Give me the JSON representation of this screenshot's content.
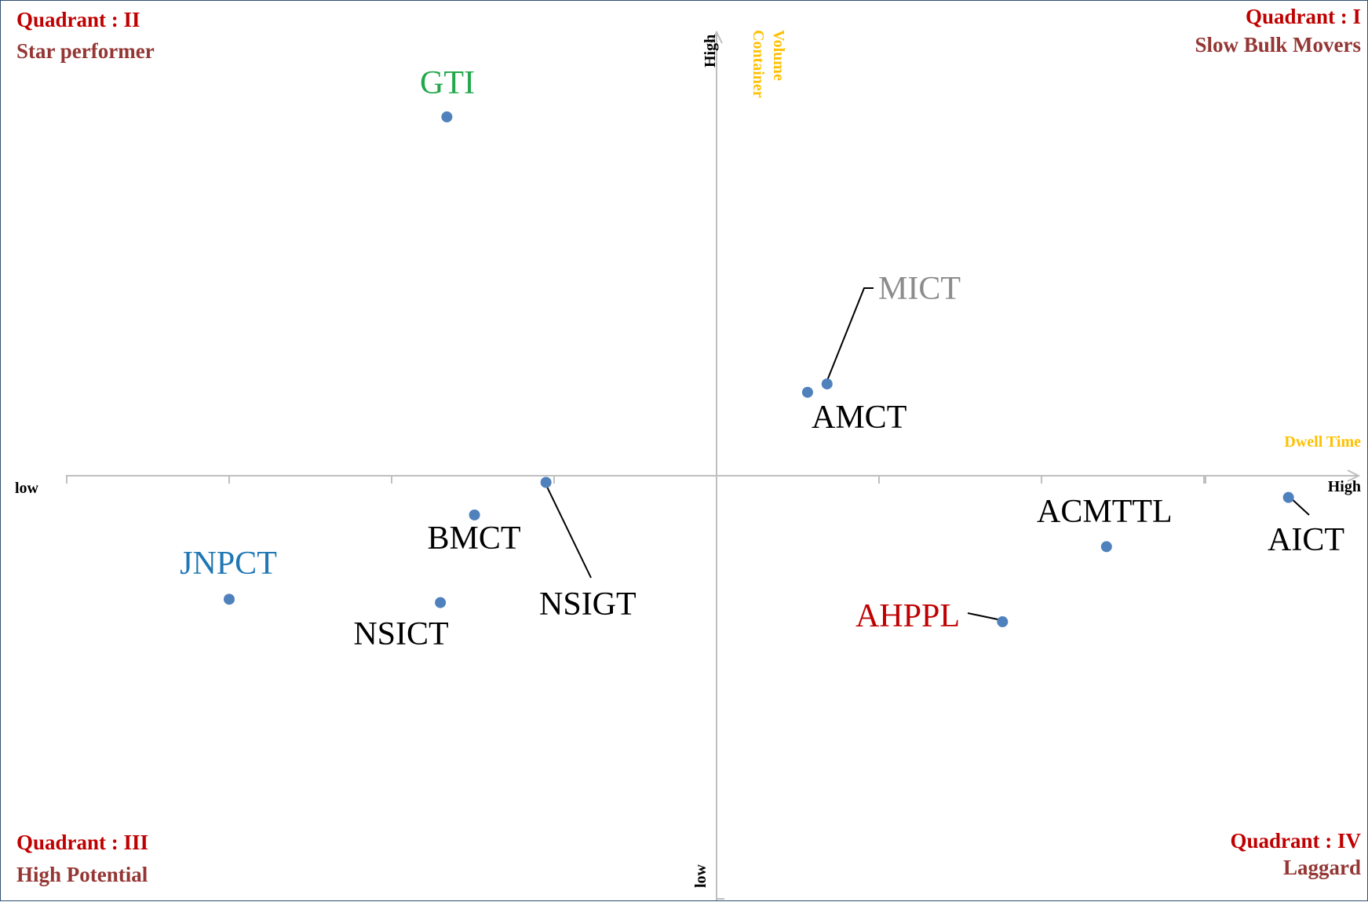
{
  "chart_data": {
    "type": "scatter",
    "xlabel": "Dwell Time",
    "ylabel_lines": [
      "Container",
      "Volume"
    ],
    "x_low_label": "low",
    "x_high_label": "High",
    "y_low_label": "low",
    "y_high_label": "High",
    "xlim": [
      -4,
      4
    ],
    "ylim": [
      -5.25,
      5.25
    ],
    "grid": false,
    "quadrants": [
      {
        "title": "Quadrant : II",
        "subtitle": "Star performer"
      },
      {
        "title": "Quadrant : I",
        "subtitle": "Slow Bulk Movers"
      },
      {
        "title": "Quadrant : III",
        "subtitle": "High Potential"
      },
      {
        "title": "Quadrant : IV",
        "subtitle": "Laggard"
      }
    ],
    "points": [
      {
        "label": "GTI",
        "x": -1.66,
        "y": 4.3,
        "label_color": "#22a84c"
      },
      {
        "label": "MICT",
        "x": 0.68,
        "y": 1.1,
        "label_color": "#8c8c8c"
      },
      {
        "label": "AMCT",
        "x": 0.56,
        "y": 1.0,
        "label_color": "#000000"
      },
      {
        "label": "NSIGT",
        "x": -1.05,
        "y": -0.08,
        "label_color": "#000000"
      },
      {
        "label": "BMCT",
        "x": -1.49,
        "y": -0.47,
        "label_color": "#000000"
      },
      {
        "label": "JNPCT",
        "x": -3.0,
        "y": -1.48,
        "label_color": "#1f77b4"
      },
      {
        "label": "NSICT",
        "x": -1.7,
        "y": -1.52,
        "label_color": "#000000"
      },
      {
        "label": "ACMTTL",
        "x": 2.4,
        "y": -0.85,
        "label_color": "#000000"
      },
      {
        "label": "AICT",
        "x": 3.52,
        "y": -0.26,
        "label_color": "#000000"
      },
      {
        "label": "AHPPL",
        "x": 1.76,
        "y": -1.75,
        "label_color": "#c00000"
      }
    ],
    "colors": {
      "marker": "#4f81bd",
      "axis": "#bfbfbf",
      "quadrant_title": "#c00000",
      "quadrant_subtitle": "#943634",
      "axis_name": "#ffc000",
      "axis_end": "#000000"
    }
  }
}
